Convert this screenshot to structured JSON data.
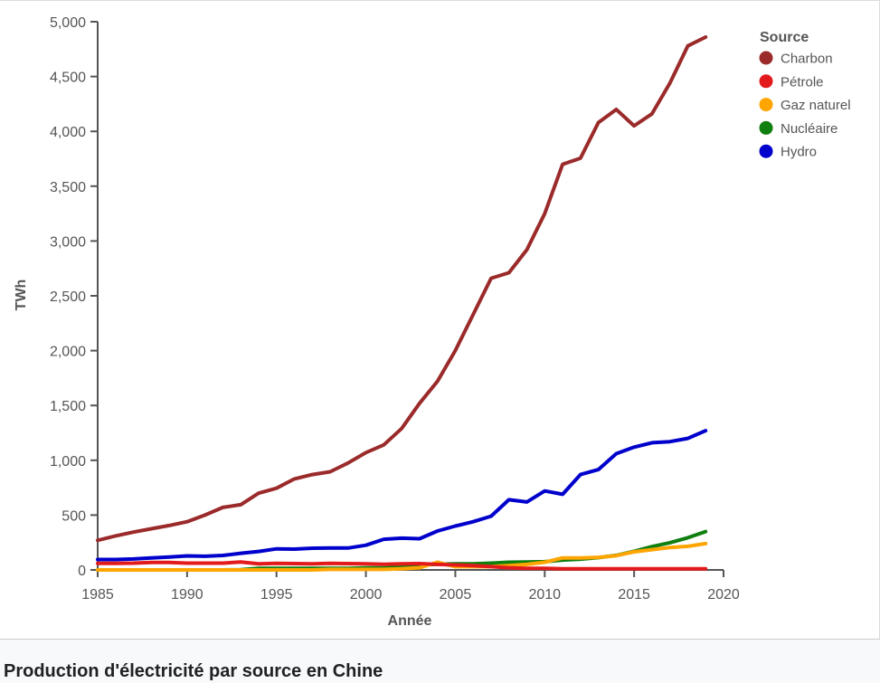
{
  "caption": "Production d'électricité par source en Chine",
  "chart_data": {
    "type": "line",
    "title": "",
    "xlabel": "Année",
    "ylabel": "TWh",
    "xlim": [
      1985,
      2020
    ],
    "ylim": [
      0,
      5000
    ],
    "x_ticks": [
      1985,
      1990,
      1995,
      2000,
      2005,
      2010,
      2015,
      2020
    ],
    "y_ticks": [
      0,
      500,
      1000,
      1500,
      2000,
      2500,
      3000,
      3500,
      4000,
      4500,
      5000
    ],
    "x_tick_labels": [
      "1985",
      "1990",
      "1995",
      "2000",
      "2005",
      "2010",
      "2015",
      "2020"
    ],
    "y_tick_labels": [
      "0",
      "500",
      "1,000",
      "1,500",
      "2,000",
      "2,500",
      "3,000",
      "3,500",
      "4,000",
      "4,500",
      "5,000"
    ],
    "grid": false,
    "legend": {
      "title": "Source",
      "position": "top-right"
    },
    "x": [
      1985,
      1986,
      1987,
      1988,
      1989,
      1990,
      1991,
      1992,
      1993,
      1994,
      1995,
      1996,
      1997,
      1998,
      1999,
      2000,
      2001,
      2002,
      2003,
      2004,
      2005,
      2006,
      2007,
      2008,
      2009,
      2010,
      2011,
      2012,
      2013,
      2014,
      2015,
      2016,
      2017,
      2018,
      2019
    ],
    "series": [
      {
        "name": "Charbon",
        "color": "#9b2a2a",
        "values": [
          270,
          310,
          345,
          375,
          405,
          440,
          500,
          570,
          595,
          700,
          745,
          830,
          870,
          895,
          975,
          1070,
          1140,
          1290,
          1520,
          1720,
          2000,
          2330,
          2660,
          2710,
          2920,
          3250,
          3700,
          3755,
          4080,
          4200,
          4050,
          4160,
          4440,
          4780,
          4860
        ]
      },
      {
        "name": "Pétrole",
        "color": "#e31a1c",
        "values": [
          60,
          60,
          62,
          68,
          68,
          62,
          62,
          62,
          72,
          55,
          60,
          58,
          55,
          60,
          58,
          55,
          52,
          55,
          58,
          50,
          45,
          40,
          30,
          20,
          15,
          15,
          10,
          10,
          10,
          10,
          10,
          10,
          10,
          10,
          10
        ]
      },
      {
        "name": "Gaz naturel",
        "color": "#ffa500",
        "values": [
          0,
          0,
          0,
          0,
          0,
          0,
          0,
          0,
          0,
          0,
          0,
          0,
          0,
          5,
          5,
          5,
          5,
          10,
          20,
          70,
          30,
          30,
          30,
          40,
          50,
          70,
          110,
          110,
          115,
          130,
          165,
          185,
          205,
          215,
          240
        ]
      },
      {
        "name": "Nucléaire",
        "color": "#0f7f0f",
        "values": [
          0,
          0,
          0,
          0,
          0,
          0,
          0,
          0,
          2,
          15,
          15,
          15,
          15,
          15,
          15,
          18,
          18,
          25,
          45,
          52,
          55,
          55,
          62,
          70,
          72,
          75,
          90,
          98,
          112,
          133,
          170,
          213,
          248,
          294,
          350
        ]
      },
      {
        "name": "Hydro",
        "color": "#0000cc",
        "values": [
          95,
          95,
          100,
          110,
          118,
          128,
          125,
          132,
          152,
          168,
          192,
          190,
          198,
          200,
          200,
          225,
          280,
          290,
          285,
          355,
          400,
          440,
          490,
          640,
          620,
          720,
          690,
          870,
          915,
          1060,
          1120,
          1160,
          1170,
          1200,
          1270
        ]
      }
    ]
  }
}
